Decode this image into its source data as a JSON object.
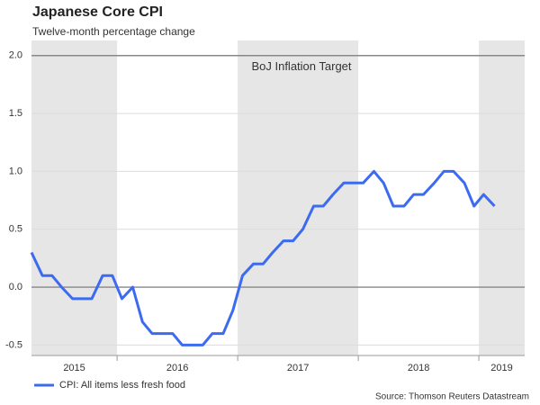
{
  "chart_data": {
    "type": "line",
    "title": "Japanese Core CPI",
    "subtitle": "Twelve-month percentage change",
    "source": "Source: Thomson Reuters Datastream",
    "annotation": {
      "text": "BoJ Inflation Target",
      "y": 2.0
    },
    "zero_line": 0,
    "x": [
      2015.29,
      2015.38,
      2015.46,
      2015.54,
      2015.63,
      2015.71,
      2015.79,
      2015.88,
      2015.96,
      2016.04,
      2016.13,
      2016.21,
      2016.29,
      2016.38,
      2016.46,
      2016.54,
      2016.63,
      2016.71,
      2016.79,
      2016.88,
      2016.96,
      2017.04,
      2017.13,
      2017.21,
      2017.29,
      2017.38,
      2017.46,
      2017.54,
      2017.63,
      2017.71,
      2017.79,
      2017.88,
      2017.96,
      2018.04,
      2018.13,
      2018.21,
      2018.29,
      2018.38,
      2018.46,
      2018.54,
      2018.63,
      2018.71,
      2018.79,
      2018.88,
      2018.96,
      2019.04,
      2019.13
    ],
    "series": [
      {
        "name": "CPI: All items less fresh food",
        "color": "#3d6bf0",
        "values": [
          0.3,
          0.1,
          0.1,
          0.0,
          -0.1,
          -0.1,
          -0.1,
          0.1,
          0.1,
          -0.1,
          0.0,
          -0.3,
          -0.4,
          -0.4,
          -0.4,
          -0.5,
          -0.5,
          -0.5,
          -0.4,
          -0.4,
          -0.2,
          0.1,
          0.2,
          0.2,
          0.3,
          0.4,
          0.4,
          0.5,
          0.7,
          0.7,
          0.8,
          0.9,
          0.9,
          0.9,
          1.0,
          0.9,
          0.7,
          0.7,
          0.8,
          0.8,
          0.9,
          1.0,
          1.0,
          0.9,
          0.7,
          0.8,
          0.7
        ]
      }
    ],
    "xlim": [
      2015.29,
      2019.38
    ],
    "xticks": [
      2015,
      2016,
      2017,
      2018,
      2019
    ],
    "ylim": [
      -0.59,
      2.13
    ],
    "yticks": [
      -0.5,
      {
        "value": 0,
        "label": "0.0"
      },
      0.5,
      {
        "value": 1,
        "label": "1.0"
      },
      1.5,
      {
        "value": 2,
        "label": "2.0"
      }
    ],
    "grid": true,
    "band_color": "#e6e6e6",
    "legend": "bottom-left"
  }
}
